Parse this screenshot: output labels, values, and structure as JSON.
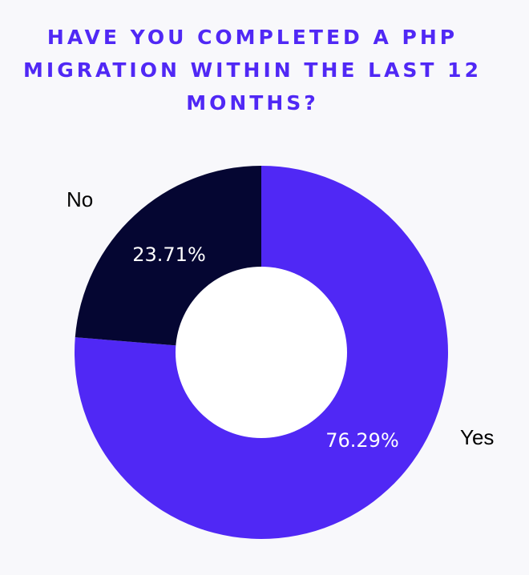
{
  "chart_data": {
    "type": "pie",
    "style": "donut",
    "title": "Have you completed a PHP migration within the last 12 months?",
    "categories": [
      "Yes",
      "No"
    ],
    "values": [
      76.29,
      23.71
    ],
    "value_labels": [
      "76.29%",
      "23.71%"
    ],
    "colors": [
      "#5028F5",
      "#050632"
    ],
    "legend": "labels-outside-slices"
  },
  "colors": {
    "background": "#F8F8FB",
    "title": "#5028F5",
    "hole": "#FFFFFF"
  }
}
